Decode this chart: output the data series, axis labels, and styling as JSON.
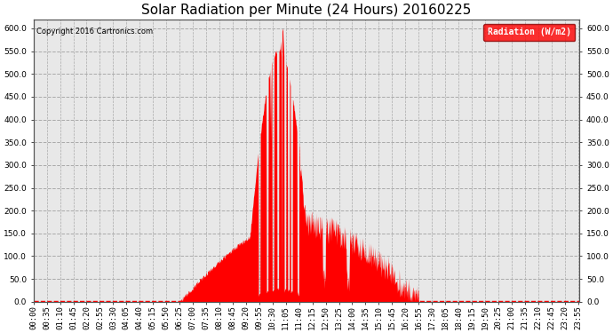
{
  "title": "Solar Radiation per Minute (24 Hours) 20160225",
  "copyright_text": "Copyright 2016 Cartronics.com",
  "legend_label": "Radiation (W/m2)",
  "ylim": [
    0.0,
    620.0
  ],
  "yticks": [
    0.0,
    50.0,
    100.0,
    150.0,
    200.0,
    250.0,
    300.0,
    350.0,
    400.0,
    450.0,
    500.0,
    550.0,
    600.0
  ],
  "fill_color": "#FF0000",
  "background_color": "#FFFFFF",
  "plot_bg_color": "#E8E8E8",
  "grid_color": "#AAAAAA",
  "title_fontsize": 11,
  "tick_fontsize": 6.5,
  "sunrise_minute": 385,
  "sunset_minute": 1025,
  "peak_minute": 655,
  "total_minutes": 1440,
  "tick_interval": 35
}
